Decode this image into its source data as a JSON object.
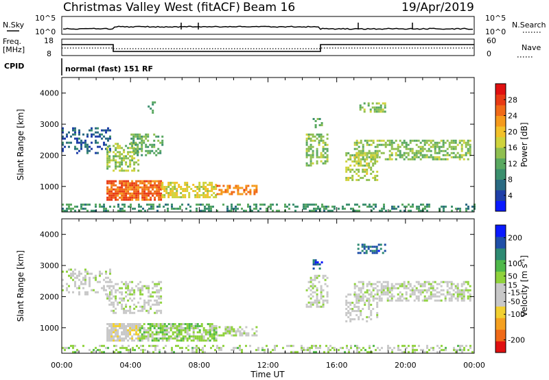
{
  "header": {
    "title": "Christmas Valley West (fitACF)",
    "beam": "Beam 16",
    "date": "19/Apr/2019"
  },
  "params": {
    "nsky_label": "N.Sky",
    "nsky_ticks": [
      "10^5",
      "10^0"
    ],
    "nsearch_label": "N.Search",
    "nsearch_ticks": [
      "10^5",
      "10^0"
    ],
    "freq_label": "Freq.",
    "freq_unit": "[MHz]",
    "freq_ticks": [
      "18",
      "8"
    ],
    "nave_label": "Nave",
    "nave_ticks": [
      "60",
      "0"
    ],
    "cpid_label": "CPID",
    "cpid_value": "normal (fast) 151 RF"
  },
  "axes": {
    "xlabel": "Time UT",
    "xticks": [
      "00:00",
      "04:00",
      "08:00",
      "12:00",
      "16:00",
      "20:00",
      "00:00"
    ],
    "ylabel": "Slant Range [km]",
    "yticks": [
      "1000",
      "2000",
      "3000",
      "4000"
    ]
  },
  "colors": {
    "power": [
      "#0a1aff",
      "#1f3fa8",
      "#2a6a82",
      "#3b8f6e",
      "#59a860",
      "#8fbf50",
      "#cfd33c",
      "#f2c12a",
      "#f59a1c",
      "#f06a18",
      "#e83a14",
      "#e01010"
    ],
    "velocity": [
      "#e01010",
      "#f06a18",
      "#f5a020",
      "#f2d030",
      "#c8c8c8",
      "#c8c8c8",
      "#8fd23c",
      "#4fb84a",
      "#2d8a72",
      "#1f4fa8",
      "#0a1aff"
    ]
  },
  "chart_data": [
    {
      "type": "heatmap",
      "title": "Power [dB]",
      "xlabel": "Time UT",
      "ylabel": "Slant Range [km]",
      "x_range_hours": [
        0,
        24
      ],
      "ylim_km": [
        180,
        4500
      ],
      "colorbar": {
        "label": "Power [dB]",
        "ticks": [
          4,
          8,
          12,
          16,
          20,
          24,
          28
        ],
        "range": [
          0,
          32
        ]
      },
      "regions": [
        {
          "t0": 0.0,
          "t1": 24.0,
          "r0": 200,
          "r1": 450,
          "value": 10,
          "density": 0.35
        },
        {
          "t0": 2.6,
          "t1": 5.8,
          "r0": 600,
          "r1": 1200,
          "value": 26,
          "density": 0.85
        },
        {
          "t0": 5.8,
          "t1": 9.0,
          "r0": 650,
          "r1": 1150,
          "value": 18,
          "density": 0.6
        },
        {
          "t0": 9.0,
          "t1": 11.3,
          "r0": 780,
          "r1": 1050,
          "value": 24,
          "density": 0.55
        },
        {
          "t0": 0.0,
          "t1": 2.8,
          "r0": 2100,
          "r1": 2900,
          "value": 6,
          "density": 0.35
        },
        {
          "t0": 2.6,
          "t1": 4.4,
          "r0": 1500,
          "r1": 2400,
          "value": 15,
          "density": 0.55
        },
        {
          "t0": 4.0,
          "t1": 5.8,
          "r0": 2000,
          "r1": 2700,
          "value": 12,
          "density": 0.45
        },
        {
          "t0": 5.0,
          "t1": 5.4,
          "r0": 3400,
          "r1": 3800,
          "value": 10,
          "density": 0.4
        },
        {
          "t0": 14.2,
          "t1": 15.5,
          "r0": 1700,
          "r1": 2700,
          "value": 14,
          "density": 0.5
        },
        {
          "t0": 14.6,
          "t1": 15.1,
          "r0": 2900,
          "r1": 3200,
          "value": 12,
          "density": 0.5
        },
        {
          "t0": 17.0,
          "t1": 23.8,
          "r0": 1900,
          "r1": 2500,
          "value": 14,
          "density": 0.55
        },
        {
          "t0": 16.5,
          "t1": 18.4,
          "r0": 1200,
          "r1": 2100,
          "value": 16,
          "density": 0.5
        },
        {
          "t0": 17.2,
          "t1": 18.8,
          "r0": 3400,
          "r1": 3700,
          "value": 14,
          "density": 0.45
        }
      ]
    },
    {
      "type": "heatmap",
      "title": "Velocity [m s^-1]",
      "xlabel": "Time UT",
      "ylabel": "Slant Range [km]",
      "x_range_hours": [
        0,
        24
      ],
      "ylim_km": [
        180,
        4500
      ],
      "colorbar": {
        "label": "Velocity [m s^-1]",
        "ticks": [
          -200,
          -100,
          -50,
          -15,
          15,
          50,
          100,
          200
        ],
        "range": [
          -250,
          250
        ]
      },
      "regions": [
        {
          "t0": 0.0,
          "t1": 24.0,
          "r0": 200,
          "r1": 450,
          "value": 30,
          "density": 0.35
        },
        {
          "t0": 2.6,
          "t1": 4.5,
          "r0": 600,
          "r1": 1150,
          "value": -40,
          "density": 0.8
        },
        {
          "t0": 4.5,
          "t1": 9.0,
          "r0": 600,
          "r1": 1150,
          "value": 40,
          "density": 0.75
        },
        {
          "t0": 9.0,
          "t1": 11.3,
          "r0": 780,
          "r1": 1050,
          "value": 25,
          "density": 0.55
        },
        {
          "t0": 0.0,
          "t1": 2.8,
          "r0": 2100,
          "r1": 2900,
          "value": 0,
          "density": 0.3
        },
        {
          "t0": 2.6,
          "t1": 5.8,
          "r0": 1500,
          "r1": 2500,
          "value": -5,
          "density": 0.45
        },
        {
          "t0": 14.2,
          "t1": 15.5,
          "r0": 1700,
          "r1": 2700,
          "value": 5,
          "density": 0.5
        },
        {
          "t0": 14.6,
          "t1": 15.1,
          "r0": 2900,
          "r1": 3200,
          "value": 180,
          "density": 0.5
        },
        {
          "t0": 17.0,
          "t1": 23.8,
          "r0": 1900,
          "r1": 2500,
          "value": 0,
          "density": 0.55
        },
        {
          "t0": 16.5,
          "t1": 18.4,
          "r0": 1200,
          "r1": 2100,
          "value": -10,
          "density": 0.45
        },
        {
          "t0": 17.2,
          "t1": 18.8,
          "r0": 3400,
          "r1": 3700,
          "value": 160,
          "density": 0.45
        }
      ]
    }
  ]
}
